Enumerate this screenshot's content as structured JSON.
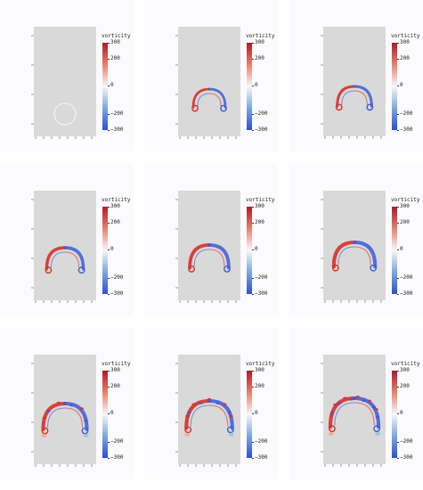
{
  "chart_data": [
    {
      "type": "heatmap",
      "colorbar": {
        "title": "vorticity",
        "ticks": [
          "300",
          "200",
          "0",
          "−200",
          "−300"
        ],
        "range": [
          -300,
          300
        ]
      },
      "frame": 1,
      "pattern": "ring"
    },
    {
      "type": "heatmap",
      "colorbar": {
        "title": "vorticity",
        "ticks": [
          "300",
          "200",
          "0",
          "−200",
          "−300"
        ],
        "range": [
          -300,
          300
        ]
      },
      "frame": 2,
      "pattern": "cap"
    },
    {
      "type": "heatmap",
      "colorbar": {
        "title": "vorticity",
        "ticks": [
          "300",
          "200",
          "0",
          "−200",
          "−300"
        ],
        "range": [
          -300,
          300
        ]
      },
      "frame": 3,
      "pattern": "cap"
    },
    {
      "type": "heatmap",
      "colorbar": {
        "title": "vorticity",
        "ticks": [
          "300",
          "200",
          "0",
          "−200",
          "−300"
        ],
        "range": [
          -300,
          300
        ]
      },
      "frame": 4,
      "pattern": "cap"
    },
    {
      "type": "heatmap",
      "colorbar": {
        "title": "vorticity",
        "ticks": [
          "300",
          "200",
          "0",
          "−200",
          "−300"
        ],
        "range": [
          -300,
          300
        ]
      },
      "frame": 5,
      "pattern": "cap"
    },
    {
      "type": "heatmap",
      "colorbar": {
        "title": "vorticity",
        "ticks": [
          "300",
          "200",
          "0",
          "−200",
          "−300"
        ],
        "range": [
          -300,
          300
        ]
      },
      "frame": 6,
      "pattern": "cap"
    },
    {
      "type": "heatmap",
      "colorbar": {
        "title": "vorticity",
        "ticks": [
          "300",
          "200",
          "0",
          "−200",
          "−300"
        ],
        "range": [
          -300,
          300
        ]
      },
      "frame": 7,
      "pattern": "turbulent"
    },
    {
      "type": "heatmap",
      "colorbar": {
        "title": "vorticity",
        "ticks": [
          "300",
          "200",
          "0",
          "−200",
          "−300"
        ],
        "range": [
          -300,
          300
        ]
      },
      "frame": 8,
      "pattern": "turbulent"
    },
    {
      "type": "heatmap",
      "colorbar": {
        "title": "vorticity",
        "ticks": [
          "300",
          "200",
          "0",
          "−200",
          "−300"
        ],
        "range": [
          -300,
          300
        ]
      },
      "frame": 9,
      "pattern": "turbulent"
    }
  ],
  "colors": {
    "positive": "#d73027",
    "negative": "#3b5bdb",
    "background": "#d9d9d9"
  }
}
